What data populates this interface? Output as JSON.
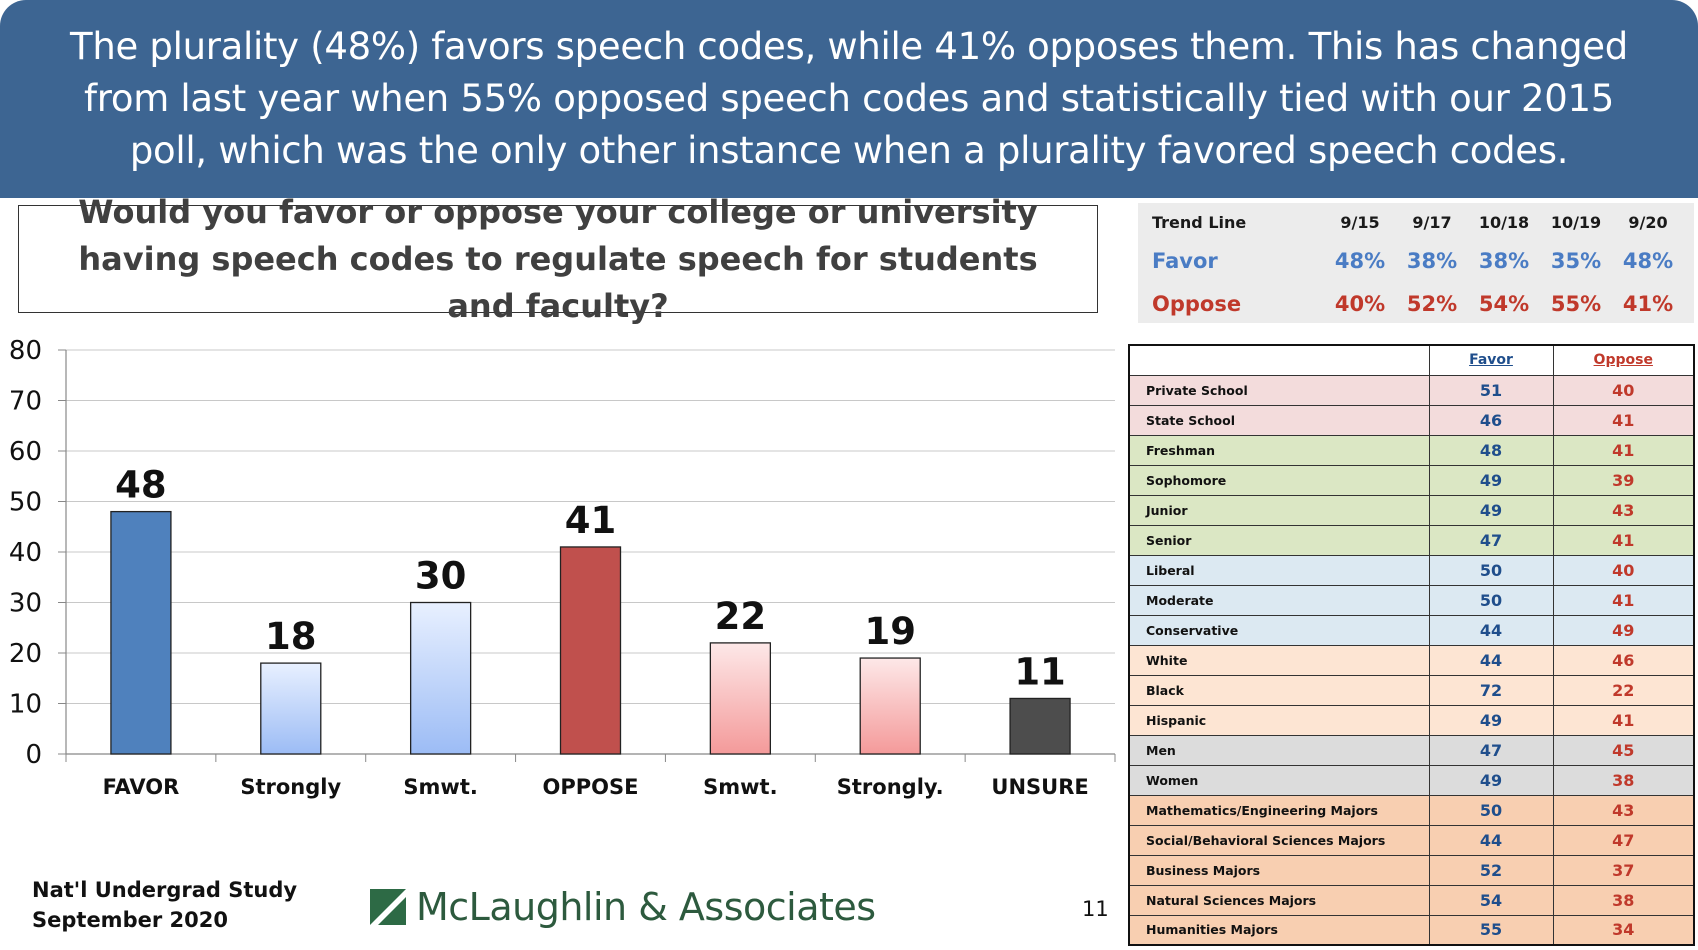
{
  "header": {
    "summary": "The plurality (48%) favors speech codes, while 41% opposes them. This has changed from last year when 55% opposed speech codes and statistically tied with our 2015 poll, which was the only other instance when a plurality favored speech codes."
  },
  "question": "Would you favor or oppose your college or university having speech codes to regulate speech for students and faculty?",
  "trend": {
    "label": "Trend Line",
    "dates": [
      "9/15",
      "9/17",
      "10/18",
      "10/19",
      "9/20"
    ],
    "favor_label": "Favor",
    "favor": [
      "48%",
      "38%",
      "38%",
      "35%",
      "48%"
    ],
    "oppose_label": "Oppose",
    "oppose": [
      "40%",
      "52%",
      "54%",
      "55%",
      "41%"
    ]
  },
  "chart_data": {
    "type": "bar",
    "categories": [
      "FAVOR",
      "Strongly",
      "Smwt.",
      "OPPOSE",
      "Smwt.",
      "Strongly.",
      "UNSURE"
    ],
    "values": [
      48,
      18,
      30,
      41,
      22,
      19,
      11
    ],
    "ylim": [
      0,
      80
    ],
    "yticks": [
      0,
      10,
      20,
      30,
      40,
      50,
      60,
      70,
      80
    ],
    "grid": true,
    "colors": [
      "#4f81bd",
      "#b8d0f5",
      "#b8d0f5",
      "#c0504d",
      "#f8c0c0",
      "#f8c0c0",
      "#555555"
    ]
  },
  "demographics": {
    "col_favor": "Favor",
    "col_oppose": "Oppose",
    "rows": [
      {
        "group": "Private School",
        "favor": "51",
        "oppose": "40",
        "band": "pink"
      },
      {
        "group": "State School",
        "favor": "46",
        "oppose": "41",
        "band": "pink"
      },
      {
        "group": "Freshman",
        "favor": "48",
        "oppose": "41",
        "band": "green"
      },
      {
        "group": "Sophomore",
        "favor": "49",
        "oppose": "39",
        "band": "green"
      },
      {
        "group": "Junior",
        "favor": "49",
        "oppose": "43",
        "band": "green"
      },
      {
        "group": "Senior",
        "favor": "47",
        "oppose": "41",
        "band": "green"
      },
      {
        "group": "Liberal",
        "favor": "50",
        "oppose": "40",
        "band": "blue"
      },
      {
        "group": "Moderate",
        "favor": "50",
        "oppose": "41",
        "band": "blue"
      },
      {
        "group": "Conservative",
        "favor": "44",
        "oppose": "49",
        "band": "blue"
      },
      {
        "group": "White",
        "favor": "44",
        "oppose": "46",
        "band": "peach"
      },
      {
        "group": "Black",
        "favor": "72",
        "oppose": "22",
        "band": "peach"
      },
      {
        "group": "Hispanic",
        "favor": "49",
        "oppose": "41",
        "band": "peach"
      },
      {
        "group": "Men",
        "favor": "47",
        "oppose": "45",
        "band": "gray"
      },
      {
        "group": "Women",
        "favor": "49",
        "oppose": "38",
        "band": "gray"
      },
      {
        "group": "Mathematics/Engineering Majors",
        "favor": "50",
        "oppose": "43",
        "band": "orange"
      },
      {
        "group": "Social/Behavioral Sciences Majors",
        "favor": "44",
        "oppose": "47",
        "band": "orange"
      },
      {
        "group": "Business Majors",
        "favor": "52",
        "oppose": "37",
        "band": "orange"
      },
      {
        "group": "Natural Sciences Majors",
        "favor": "54",
        "oppose": "38",
        "band": "orange"
      },
      {
        "group": "Humanities Majors",
        "favor": "55",
        "oppose": "34",
        "band": "orange"
      }
    ]
  },
  "footer": {
    "study_line1": "Nat'l Undergrad Study",
    "study_line2": "September 2020",
    "logo_text": "McLaughlin & Associates",
    "page_number": "11"
  }
}
